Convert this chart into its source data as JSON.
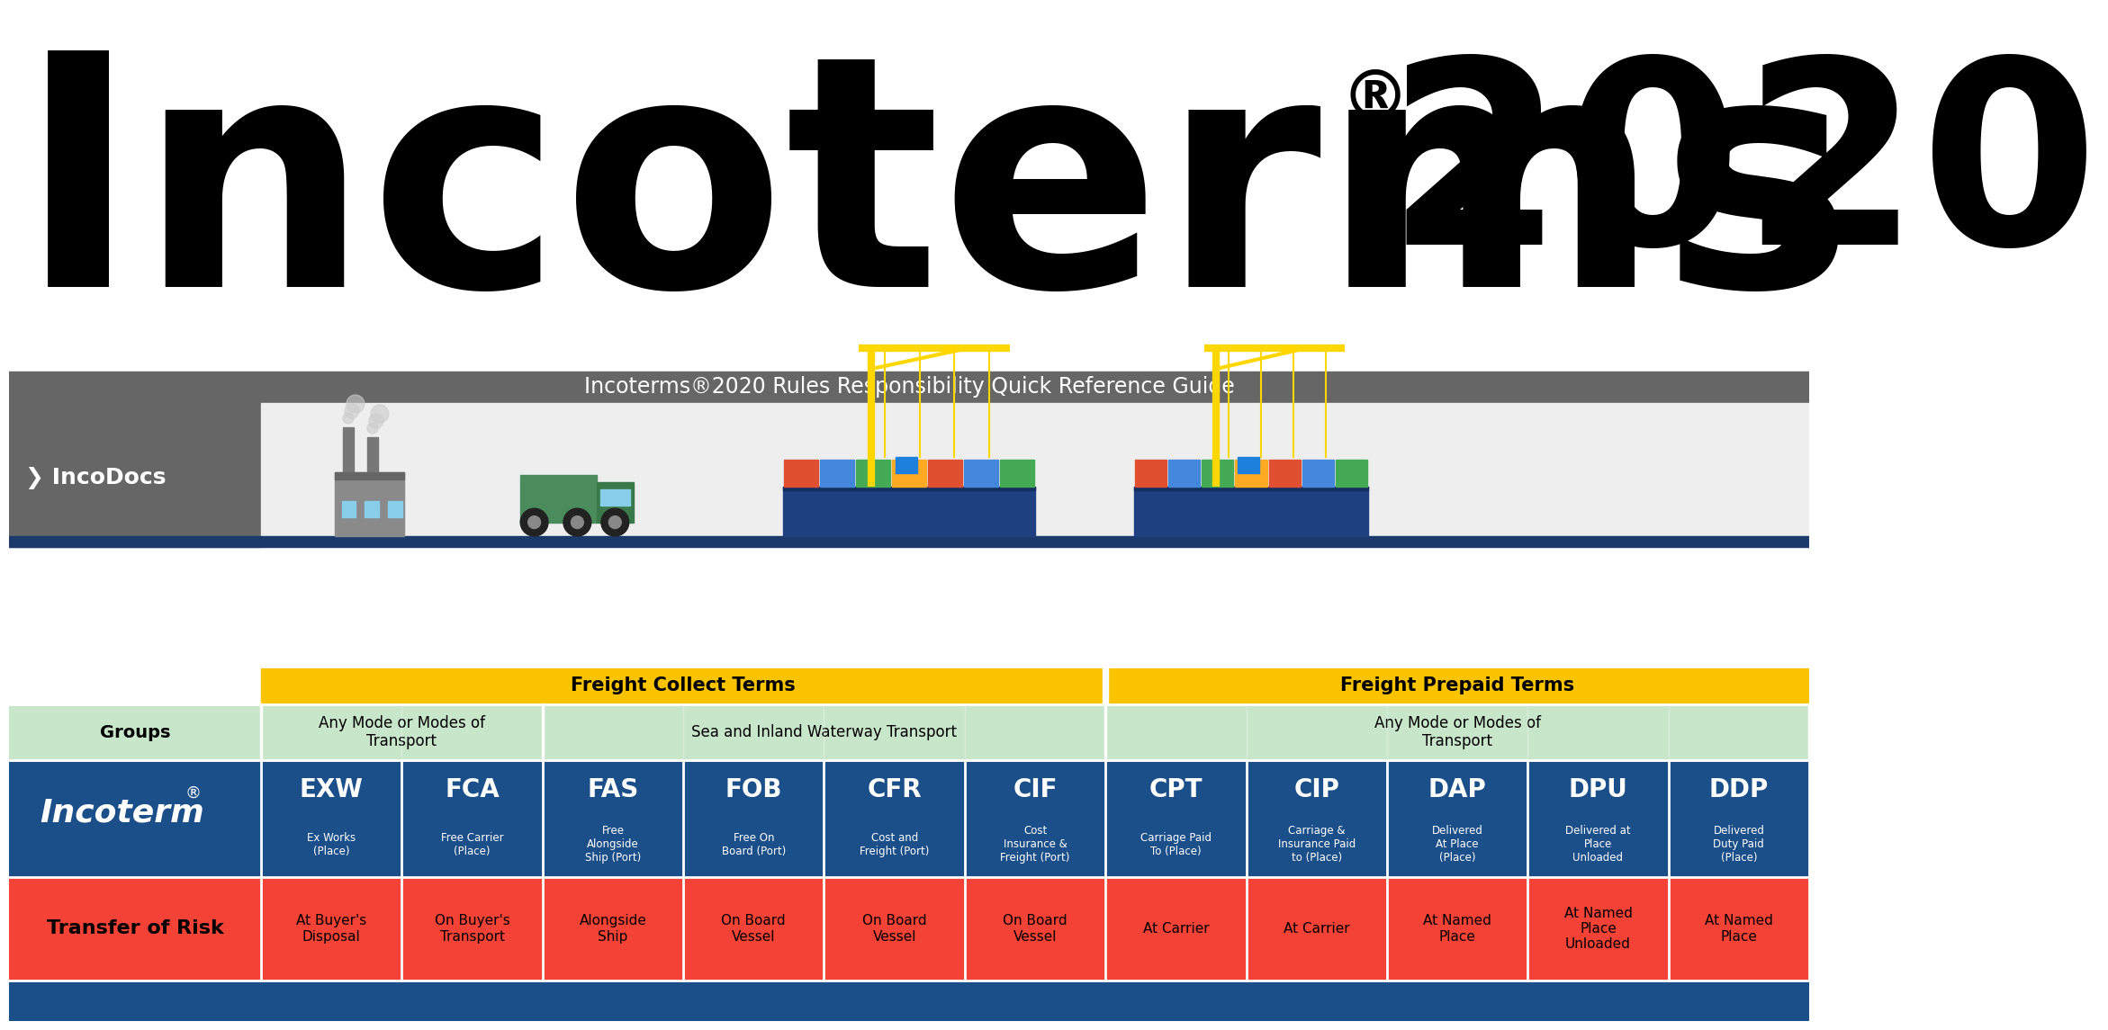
{
  "title_main": "Incoterms",
  "title_year": "2020",
  "subtitle": "Incoterms®2020 Rules Responsibility Quick Reference Guide",
  "colors": {
    "white": "#FFFFFF",
    "black": "#000000",
    "dark_gray": "#616161",
    "dark_blue": "#1B4F8A",
    "navy": "#1B3A6B",
    "light_green": "#C8E6C9",
    "yellow": "#F9C300",
    "red": "#F44336",
    "logo_bg": "#616161"
  },
  "incoterms": [
    "EXW",
    "FCA",
    "FAS",
    "FOB",
    "CFR",
    "CIF",
    "CPT",
    "CIP",
    "DAP",
    "DPU",
    "DDP"
  ],
  "incoterms_full": [
    "Ex Works\n(Place)",
    "Free Carrier\n(Place)",
    "Free\nAlongside\nShip (Port)",
    "Free On\nBoard (Port)",
    "Cost and\nFreight (Port)",
    "Cost\nInsurance &\nFreight (Port)",
    "Carriage Paid\nTo (Place)",
    "Carriage &\nInsurance Paid\nto (Place)",
    "Delivered\nAt Place\n(Place)",
    "Delivered at\nPlace\nUnloaded",
    "Delivered\nDuty Paid\n(Place)"
  ],
  "risk_transfer": [
    "At Buyer's\nDisposal",
    "On Buyer's\nTransport",
    "Alongside\nShip",
    "On Board\nVessel",
    "On Board\nVessel",
    "On Board\nVessel",
    "At Carrier",
    "At Carrier",
    "At Named\nPlace",
    "At Named\nPlace\nUnloaded",
    "At Named\nPlace"
  ],
  "background": "#FFFFFF"
}
